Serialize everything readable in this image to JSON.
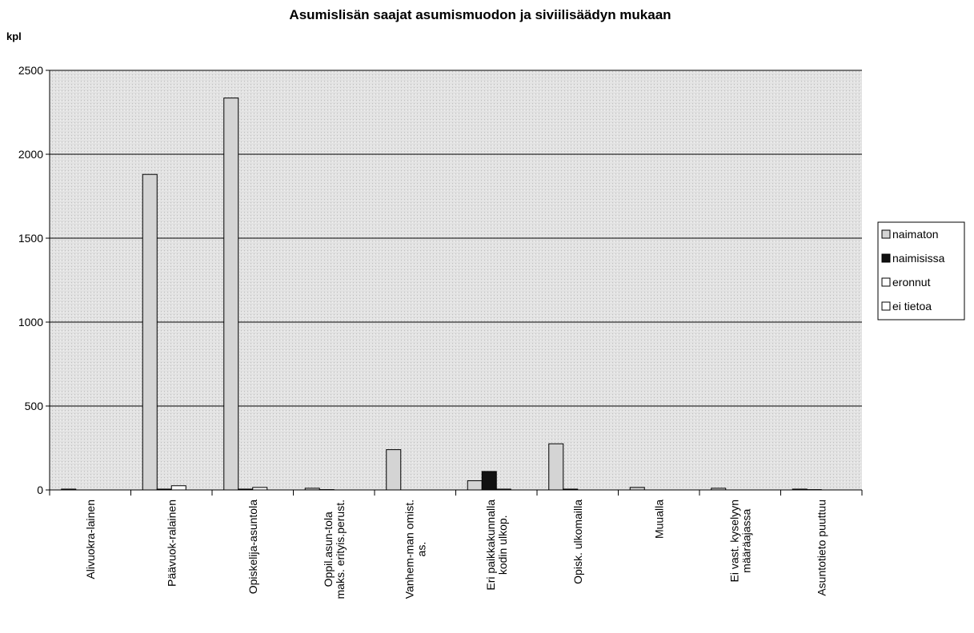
{
  "chart_data": {
    "type": "bar",
    "title": "Asumislisän saajat asumismuodon ja siviilisäädyn mukaan",
    "y_label": "kpl",
    "categories": [
      "Alivuokra-lainen",
      "Päävuok-ralainen",
      "Opiskelija-asuntola",
      "Oppil.asun-tola\nmaks. erityis.perust.",
      "Vanhem-man omist.\nas.",
      "Eri paikkakunnalla\nkodin ulkop.",
      "Opisk. ulkomailla",
      "Muualla",
      "Ei vast. kyselyyn\nmääräajassa",
      "Asuntotieto puuttuu"
    ],
    "series": [
      {
        "name": "naimaton",
        "color": "#d4d4d4",
        "values": [
          5,
          1880,
          2335,
          10,
          240,
          55,
          275,
          15,
          10,
          5
        ]
      },
      {
        "name": "naimisissa",
        "color": "#111111",
        "values": [
          0,
          5,
          5,
          2,
          0,
          110,
          5,
          0,
          0,
          2
        ]
      },
      {
        "name": "eronnut",
        "color": "#ffffff",
        "values": [
          0,
          25,
          15,
          0,
          0,
          5,
          0,
          0,
          0,
          0
        ]
      },
      {
        "name": "ei tietoa",
        "color": "#ffffff",
        "values": [
          0,
          0,
          0,
          0,
          0,
          0,
          0,
          0,
          0,
          0
        ]
      }
    ],
    "ylim": [
      0,
      2500
    ],
    "yticks": [
      0,
      500,
      1000,
      1500,
      2000,
      2500
    ],
    "grid": true,
    "legend": "right"
  }
}
